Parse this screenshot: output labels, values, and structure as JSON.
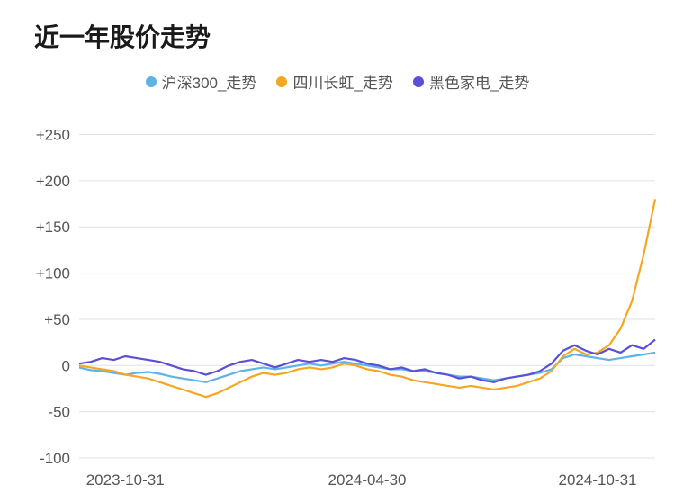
{
  "title": "近一年股价走势",
  "legend": [
    {
      "label": "沪深300_走势",
      "color": "#5eb3e4"
    },
    {
      "label": "四川长虹_走势",
      "color": "#f5a623"
    },
    {
      "label": "黑色家电_走势",
      "color": "#5b4fd6"
    }
  ],
  "chart": {
    "type": "line",
    "background_color": "#ffffff",
    "grid_color": "#e0e0e0",
    "label_color": "#555555",
    "label_fontsize": 17,
    "title_fontsize": 28,
    "title_weight": 700,
    "line_width": 2.2,
    "y": {
      "min": -100,
      "max": 270,
      "ticks": [
        -100,
        -50,
        0,
        50,
        100,
        150,
        200,
        250
      ],
      "tick_labels": [
        "-100",
        "-50",
        "0",
        "+50",
        "+100",
        "+150",
        "+200",
        "+250"
      ]
    },
    "x": {
      "min": 0,
      "max": 100,
      "ticks": [
        8,
        50,
        90
      ],
      "tick_labels": [
        "2023-10-31",
        "2024-04-30",
        "2024-10-31"
      ]
    },
    "series": [
      {
        "name": "沪深300_走势",
        "color": "#5eb3e4",
        "points": [
          [
            0,
            -2
          ],
          [
            2,
            -5
          ],
          [
            4,
            -6
          ],
          [
            6,
            -8
          ],
          [
            8,
            -10
          ],
          [
            10,
            -8
          ],
          [
            12,
            -7
          ],
          [
            14,
            -9
          ],
          [
            16,
            -12
          ],
          [
            18,
            -14
          ],
          [
            20,
            -16
          ],
          [
            22,
            -18
          ],
          [
            24,
            -14
          ],
          [
            26,
            -10
          ],
          [
            28,
            -6
          ],
          [
            30,
            -4
          ],
          [
            32,
            -2
          ],
          [
            34,
            -4
          ],
          [
            36,
            -2
          ],
          [
            38,
            0
          ],
          [
            40,
            2
          ],
          [
            42,
            0
          ],
          [
            44,
            2
          ],
          [
            46,
            4
          ],
          [
            48,
            2
          ],
          [
            50,
            0
          ],
          [
            52,
            -2
          ],
          [
            54,
            -4
          ],
          [
            56,
            -4
          ],
          [
            58,
            -6
          ],
          [
            60,
            -6
          ],
          [
            62,
            -8
          ],
          [
            64,
            -10
          ],
          [
            66,
            -12
          ],
          [
            68,
            -12
          ],
          [
            70,
            -14
          ],
          [
            72,
            -16
          ],
          [
            74,
            -14
          ],
          [
            76,
            -12
          ],
          [
            78,
            -10
          ],
          [
            80,
            -8
          ],
          [
            82,
            -4
          ],
          [
            84,
            8
          ],
          [
            86,
            12
          ],
          [
            88,
            10
          ],
          [
            90,
            8
          ],
          [
            92,
            6
          ],
          [
            94,
            8
          ],
          [
            96,
            10
          ],
          [
            98,
            12
          ],
          [
            100,
            14
          ]
        ]
      },
      {
        "name": "四川长虹_走势",
        "color": "#f5a623",
        "points": [
          [
            0,
            0
          ],
          [
            2,
            -2
          ],
          [
            4,
            -4
          ],
          [
            6,
            -6
          ],
          [
            8,
            -10
          ],
          [
            10,
            -12
          ],
          [
            12,
            -14
          ],
          [
            14,
            -18
          ],
          [
            16,
            -22
          ],
          [
            18,
            -26
          ],
          [
            20,
            -30
          ],
          [
            22,
            -34
          ],
          [
            24,
            -30
          ],
          [
            26,
            -24
          ],
          [
            28,
            -18
          ],
          [
            30,
            -12
          ],
          [
            32,
            -8
          ],
          [
            34,
            -10
          ],
          [
            36,
            -8
          ],
          [
            38,
            -4
          ],
          [
            40,
            -2
          ],
          [
            42,
            -4
          ],
          [
            44,
            -2
          ],
          [
            46,
            2
          ],
          [
            48,
            0
          ],
          [
            50,
            -4
          ],
          [
            52,
            -6
          ],
          [
            54,
            -10
          ],
          [
            56,
            -12
          ],
          [
            58,
            -16
          ],
          [
            60,
            -18
          ],
          [
            62,
            -20
          ],
          [
            64,
            -22
          ],
          [
            66,
            -24
          ],
          [
            68,
            -22
          ],
          [
            70,
            -24
          ],
          [
            72,
            -26
          ],
          [
            74,
            -24
          ],
          [
            76,
            -22
          ],
          [
            78,
            -18
          ],
          [
            80,
            -14
          ],
          [
            82,
            -6
          ],
          [
            84,
            10
          ],
          [
            86,
            18
          ],
          [
            88,
            12
          ],
          [
            90,
            14
          ],
          [
            92,
            22
          ],
          [
            94,
            40
          ],
          [
            96,
            70
          ],
          [
            98,
            120
          ],
          [
            100,
            180
          ]
        ]
      },
      {
        "name": "黑色家电_走势",
        "color": "#5b4fd6",
        "points": [
          [
            0,
            2
          ],
          [
            2,
            4
          ],
          [
            4,
            8
          ],
          [
            6,
            6
          ],
          [
            8,
            10
          ],
          [
            10,
            8
          ],
          [
            12,
            6
          ],
          [
            14,
            4
          ],
          [
            16,
            0
          ],
          [
            18,
            -4
          ],
          [
            20,
            -6
          ],
          [
            22,
            -10
          ],
          [
            24,
            -6
          ],
          [
            26,
            0
          ],
          [
            28,
            4
          ],
          [
            30,
            6
          ],
          [
            32,
            2
          ],
          [
            34,
            -2
          ],
          [
            36,
            2
          ],
          [
            38,
            6
          ],
          [
            40,
            4
          ],
          [
            42,
            6
          ],
          [
            44,
            4
          ],
          [
            46,
            8
          ],
          [
            48,
            6
          ],
          [
            50,
            2
          ],
          [
            52,
            0
          ],
          [
            54,
            -4
          ],
          [
            56,
            -2
          ],
          [
            58,
            -6
          ],
          [
            60,
            -4
          ],
          [
            62,
            -8
          ],
          [
            64,
            -10
          ],
          [
            66,
            -14
          ],
          [
            68,
            -12
          ],
          [
            70,
            -16
          ],
          [
            72,
            -18
          ],
          [
            74,
            -14
          ],
          [
            76,
            -12
          ],
          [
            78,
            -10
          ],
          [
            80,
            -6
          ],
          [
            82,
            2
          ],
          [
            84,
            16
          ],
          [
            86,
            22
          ],
          [
            88,
            16
          ],
          [
            90,
            12
          ],
          [
            92,
            18
          ],
          [
            94,
            14
          ],
          [
            96,
            22
          ],
          [
            98,
            18
          ],
          [
            100,
            28
          ]
        ]
      }
    ]
  }
}
